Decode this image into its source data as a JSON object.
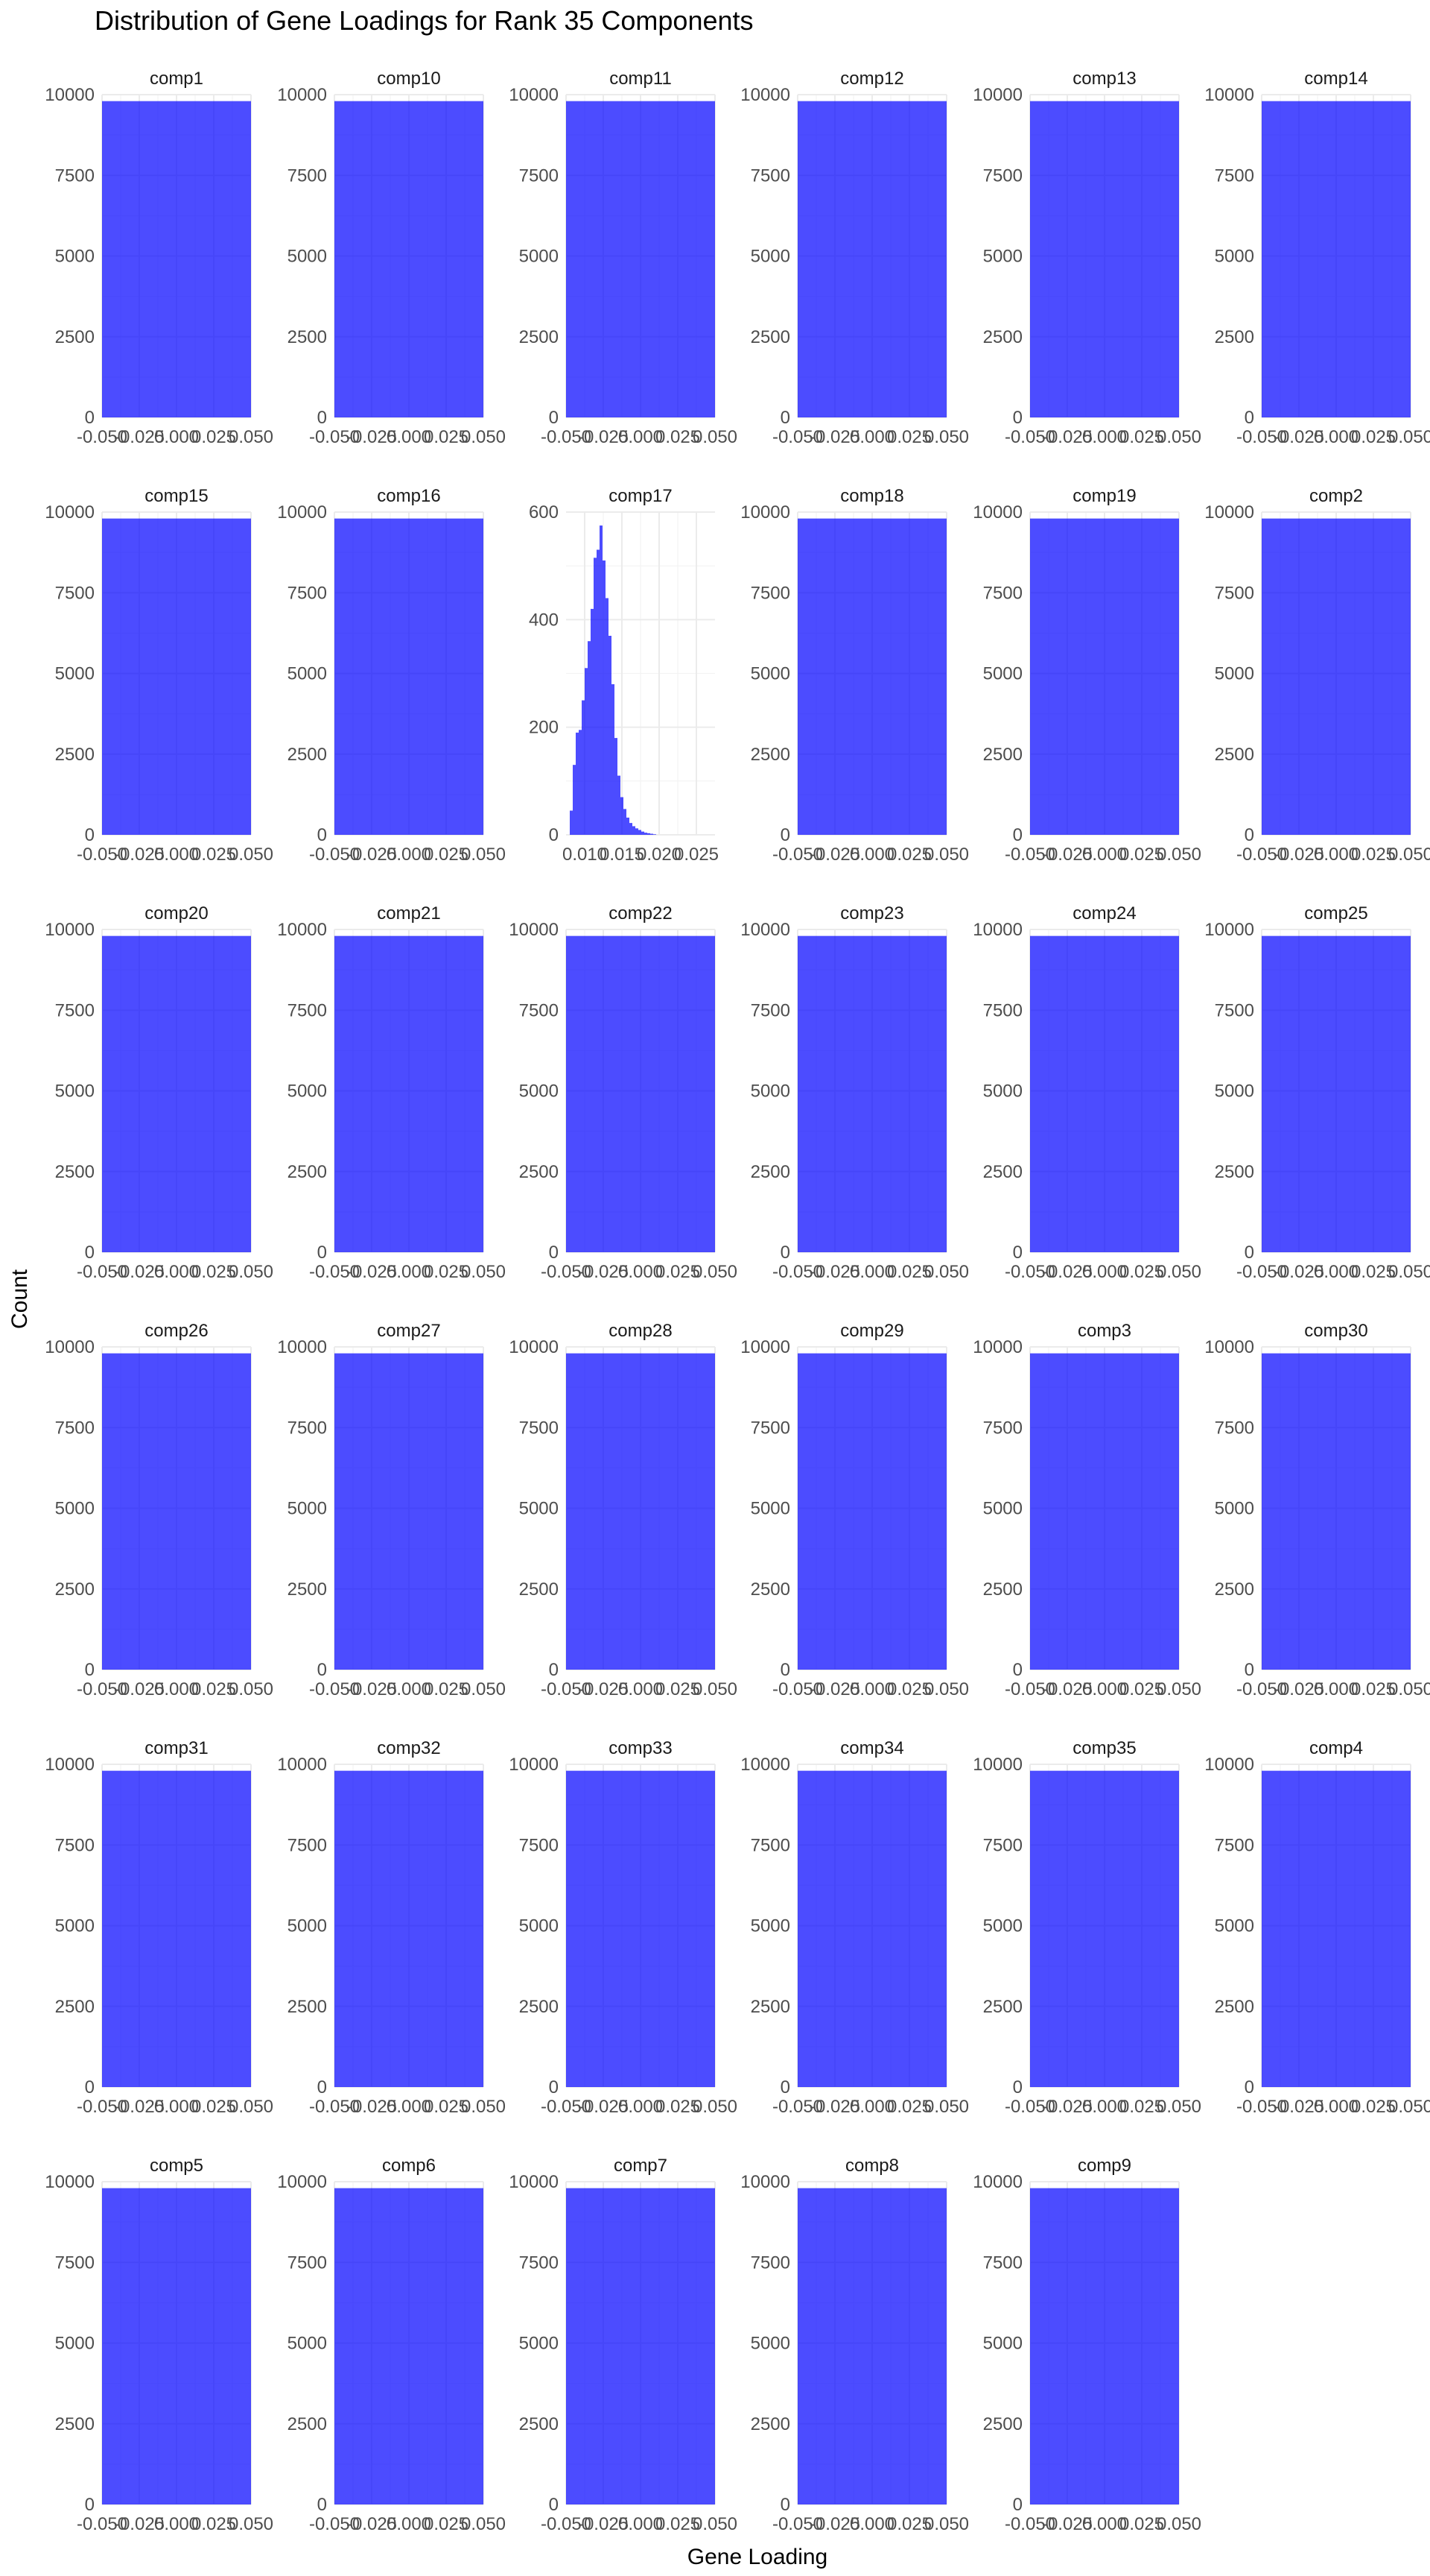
{
  "chart_data": {
    "type": "bar",
    "title": "Distribution of Gene Loadings for Rank 35 Components",
    "xlabel": "Gene Loading",
    "ylabel": "Count",
    "fill_color": "#0000FF",
    "fill_opacity": 0.7,
    "grid": true,
    "facet_layout": "6 columns, 6 rows, free scales",
    "panels_default": {
      "xlim": [
        -0.05,
        0.05
      ],
      "ylim": [
        0,
        10000
      ],
      "x_ticks": [
        -0.05,
        -0.025,
        0.0,
        0.025,
        0.05
      ],
      "x_tick_labels": [
        "-0.050",
        "-0.025",
        "0.000",
        "0.025",
        "0.050"
      ],
      "y_ticks": [
        0,
        2500,
        5000,
        7500,
        10000
      ],
      "y_tick_labels": [
        "0",
        "2500",
        "5000",
        "7500",
        "10000"
      ],
      "single_bin": {
        "x_range": [
          -0.05,
          0.05
        ],
        "count": 9800
      }
    },
    "panels": [
      {
        "name": "comp1"
      },
      {
        "name": "comp10"
      },
      {
        "name": "comp11"
      },
      {
        "name": "comp12"
      },
      {
        "name": "comp13"
      },
      {
        "name": "comp14"
      },
      {
        "name": "comp15"
      },
      {
        "name": "comp16"
      },
      {
        "name": "comp17",
        "xlim": [
          0.0075,
          0.0275
        ],
        "ylim": [
          0,
          600
        ],
        "x_ticks": [
          0.01,
          0.015,
          0.02,
          0.025
        ],
        "x_tick_labels": [
          "0.010",
          "0.015",
          "0.020",
          "0.025"
        ],
        "y_ticks": [
          0,
          200,
          400,
          600
        ],
        "y_tick_labels": [
          "0",
          "200",
          "400",
          "600"
        ],
        "bin_width": 0.0004,
        "bin_start": 0.008,
        "counts": [
          45,
          130,
          190,
          195,
          250,
          310,
          360,
          420,
          515,
          530,
          575,
          510,
          440,
          370,
          280,
          180,
          110,
          70,
          48,
          32,
          22,
          16,
          12,
          9,
          6,
          4,
          3,
          2,
          1
        ]
      },
      {
        "name": "comp18"
      },
      {
        "name": "comp19"
      },
      {
        "name": "comp2"
      },
      {
        "name": "comp20"
      },
      {
        "name": "comp21"
      },
      {
        "name": "comp22"
      },
      {
        "name": "comp23"
      },
      {
        "name": "comp24"
      },
      {
        "name": "comp25"
      },
      {
        "name": "comp26"
      },
      {
        "name": "comp27"
      },
      {
        "name": "comp28"
      },
      {
        "name": "comp29"
      },
      {
        "name": "comp3"
      },
      {
        "name": "comp30"
      },
      {
        "name": "comp31"
      },
      {
        "name": "comp32"
      },
      {
        "name": "comp33"
      },
      {
        "name": "comp34"
      },
      {
        "name": "comp35"
      },
      {
        "name": "comp4"
      },
      {
        "name": "comp5"
      },
      {
        "name": "comp6"
      },
      {
        "name": "comp7"
      },
      {
        "name": "comp8"
      },
      {
        "name": "comp9"
      }
    ]
  }
}
